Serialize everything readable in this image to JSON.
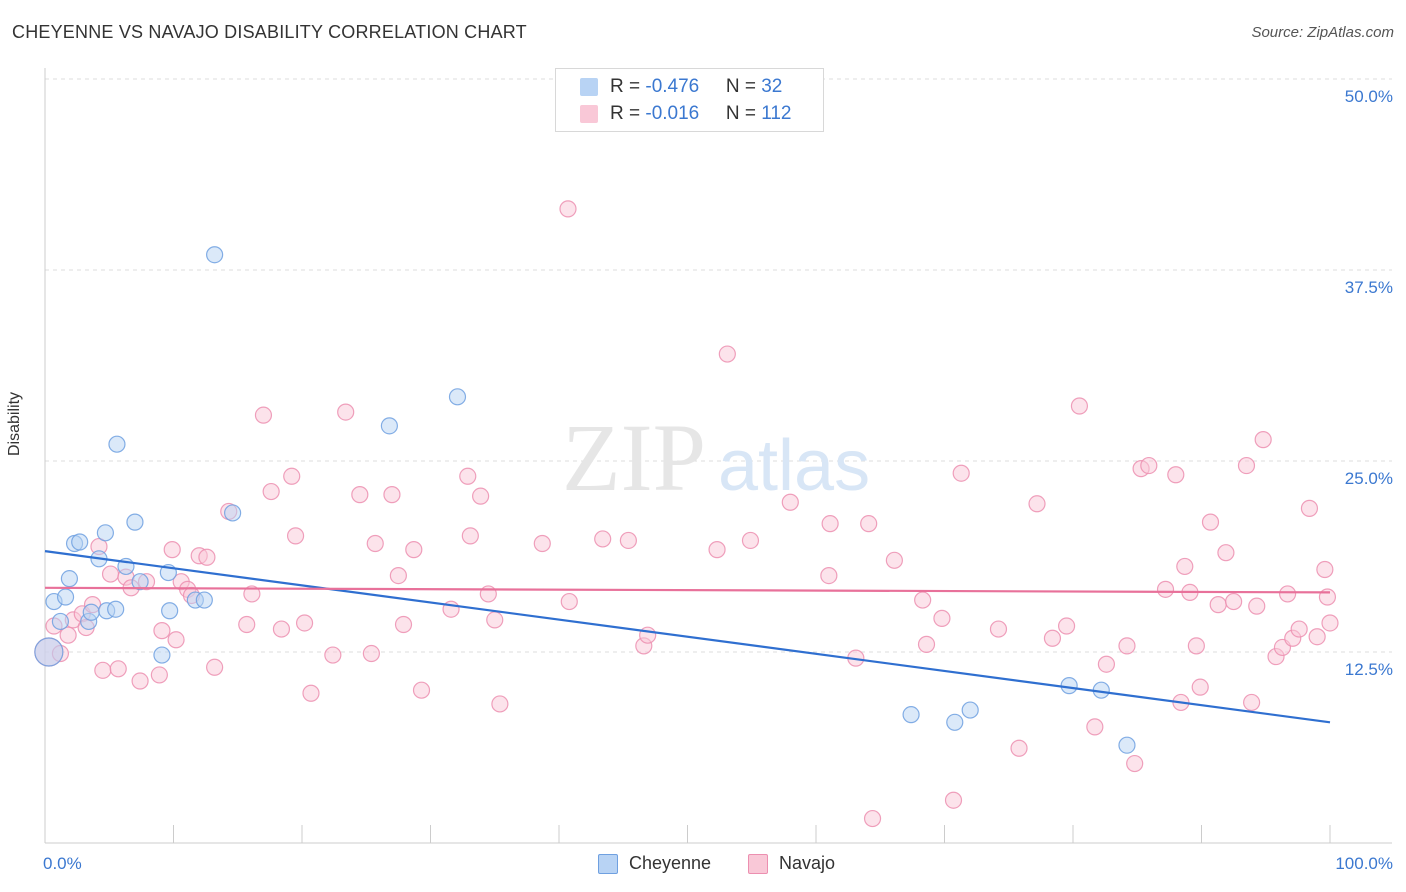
{
  "header": {
    "title": "CHEYENNE VS NAVAJO DISABILITY CORRELATION CHART",
    "source": "Source: ZipAtlas.com"
  },
  "watermark": {
    "zip": "ZIP",
    "atlas": "atlas"
  },
  "legend": {
    "rows": [
      {
        "r_label": "R = ",
        "r_value": "-0.476",
        "n_label": "N = ",
        "n_value": "32",
        "fill": "#b8d3f4",
        "stroke": "#6fa0e0"
      },
      {
        "r_label": "R = ",
        "r_value": "-0.016",
        "n_label": "N = ",
        "n_value": "112",
        "fill": "#f9c8d7",
        "stroke": "#ec8fb0"
      }
    ]
  },
  "chart_data": {
    "type": "scatter",
    "title": "CHEYENNE VS NAVAJO DISABILITY CORRELATION CHART",
    "ylabel": "Disability",
    "xlim": [
      0,
      100
    ],
    "ylim": [
      0,
      50
    ],
    "x_tick_labels": [
      "0.0%",
      "100.0%"
    ],
    "y_ticks": [
      12.5,
      25.0,
      37.5,
      50.0
    ],
    "y_tick_labels": [
      "12.5%",
      "25.0%",
      "37.5%",
      "50.0%"
    ],
    "grid": true,
    "legend_position": "top-center",
    "series": [
      {
        "name": "Cheyenne",
        "color": "#6fa0e0",
        "fill": "#b8d3f4",
        "line_color": "#2f6fd0",
        "trend": {
          "x": [
            0,
            100
          ],
          "y": [
            19.1,
            7.9
          ]
        },
        "points": [
          [
            0.3,
            12.5
          ],
          [
            0.7,
            15.8
          ],
          [
            1.2,
            14.5
          ],
          [
            1.6,
            16.1
          ],
          [
            1.9,
            17.3
          ],
          [
            2.3,
            19.6
          ],
          [
            2.7,
            19.7
          ],
          [
            3.4,
            14.5
          ],
          [
            3.6,
            15.1
          ],
          [
            4.2,
            18.6
          ],
          [
            4.7,
            20.3
          ],
          [
            4.8,
            15.2
          ],
          [
            5.5,
            15.3
          ],
          [
            5.6,
            26.1
          ],
          [
            6.3,
            18.1
          ],
          [
            7.0,
            21.0
          ],
          [
            7.4,
            17.1
          ],
          [
            9.1,
            12.3
          ],
          [
            9.6,
            17.7
          ],
          [
            9.7,
            15.2
          ],
          [
            11.7,
            15.9
          ],
          [
            12.4,
            15.9
          ],
          [
            13.2,
            38.5
          ],
          [
            14.6,
            21.6
          ],
          [
            26.8,
            27.3
          ],
          [
            32.1,
            29.2
          ],
          [
            67.4,
            8.4
          ],
          [
            70.8,
            7.9
          ],
          [
            72.0,
            8.7
          ],
          [
            79.7,
            10.3
          ],
          [
            82.2,
            10.0
          ],
          [
            84.2,
            6.4
          ]
        ]
      },
      {
        "name": "Navajo",
        "color": "#ec8fb0",
        "fill": "#f9c8d7",
        "line_color": "#e8719a",
        "trend": {
          "x": [
            0,
            100
          ],
          "y": [
            16.7,
            16.4
          ]
        },
        "points": [
          [
            0.3,
            12.5
          ],
          [
            0.7,
            14.2
          ],
          [
            1.2,
            12.4
          ],
          [
            1.8,
            13.6
          ],
          [
            2.2,
            14.6
          ],
          [
            2.9,
            15.0
          ],
          [
            3.2,
            14.1
          ],
          [
            3.7,
            15.6
          ],
          [
            4.2,
            19.4
          ],
          [
            4.5,
            11.3
          ],
          [
            5.1,
            17.6
          ],
          [
            5.7,
            11.4
          ],
          [
            6.3,
            17.4
          ],
          [
            6.7,
            16.7
          ],
          [
            7.4,
            10.6
          ],
          [
            7.9,
            17.1
          ],
          [
            8.9,
            11.0
          ],
          [
            9.1,
            13.9
          ],
          [
            9.9,
            19.2
          ],
          [
            10.2,
            13.3
          ],
          [
            10.6,
            17.1
          ],
          [
            11.1,
            16.6
          ],
          [
            11.4,
            16.2
          ],
          [
            12.0,
            18.8
          ],
          [
            12.6,
            18.7
          ],
          [
            13.2,
            11.5
          ],
          [
            14.3,
            21.7
          ],
          [
            15.7,
            14.3
          ],
          [
            16.1,
            16.3
          ],
          [
            17.0,
            28.0
          ],
          [
            17.6,
            23.0
          ],
          [
            18.4,
            14.0
          ],
          [
            19.2,
            24.0
          ],
          [
            19.5,
            20.1
          ],
          [
            20.2,
            14.4
          ],
          [
            20.7,
            9.8
          ],
          [
            22.4,
            12.3
          ],
          [
            23.4,
            28.2
          ],
          [
            24.5,
            22.8
          ],
          [
            25.4,
            12.4
          ],
          [
            25.7,
            19.6
          ],
          [
            27.0,
            22.8
          ],
          [
            27.5,
            17.5
          ],
          [
            27.9,
            14.3
          ],
          [
            28.7,
            19.2
          ],
          [
            29.3,
            10.0
          ],
          [
            31.6,
            15.3
          ],
          [
            32.9,
            24.0
          ],
          [
            33.1,
            20.1
          ],
          [
            33.9,
            22.7
          ],
          [
            34.5,
            16.3
          ],
          [
            35.0,
            14.6
          ],
          [
            35.4,
            9.1
          ],
          [
            38.7,
            19.6
          ],
          [
            40.7,
            41.5
          ],
          [
            40.8,
            15.8
          ],
          [
            43.4,
            19.9
          ],
          [
            45.4,
            19.8
          ],
          [
            46.6,
            12.9
          ],
          [
            46.9,
            13.6
          ],
          [
            52.3,
            19.2
          ],
          [
            53.1,
            32.0
          ],
          [
            54.9,
            19.8
          ],
          [
            58.0,
            22.3
          ],
          [
            61.0,
            17.5
          ],
          [
            61.1,
            20.9
          ],
          [
            63.1,
            12.1
          ],
          [
            64.1,
            20.9
          ],
          [
            66.1,
            18.5
          ],
          [
            68.3,
            15.9
          ],
          [
            68.6,
            13.0
          ],
          [
            69.8,
            14.7
          ],
          [
            70.7,
            2.8
          ],
          [
            71.3,
            24.2
          ],
          [
            74.2,
            14.0
          ],
          [
            75.8,
            6.2
          ],
          [
            77.2,
            22.2
          ],
          [
            78.4,
            13.4
          ],
          [
            79.5,
            14.2
          ],
          [
            80.5,
            28.6
          ],
          [
            81.7,
            7.6
          ],
          [
            82.6,
            11.7
          ],
          [
            84.2,
            12.9
          ],
          [
            84.8,
            5.2
          ],
          [
            85.3,
            24.5
          ],
          [
            85.9,
            24.7
          ],
          [
            87.2,
            16.6
          ],
          [
            88.0,
            24.1
          ],
          [
            88.4,
            9.2
          ],
          [
            88.7,
            18.1
          ],
          [
            89.1,
            16.4
          ],
          [
            89.6,
            12.9
          ],
          [
            89.9,
            10.2
          ],
          [
            90.7,
            21.0
          ],
          [
            91.3,
            15.6
          ],
          [
            91.9,
            19.0
          ],
          [
            92.5,
            15.8
          ],
          [
            93.5,
            24.7
          ],
          [
            93.9,
            9.2
          ],
          [
            94.3,
            15.5
          ],
          [
            94.8,
            26.4
          ],
          [
            95.8,
            12.2
          ],
          [
            96.3,
            12.8
          ],
          [
            96.7,
            16.3
          ],
          [
            97.1,
            13.4
          ],
          [
            97.6,
            14.0
          ],
          [
            98.4,
            21.9
          ],
          [
            99.0,
            13.5
          ],
          [
            99.6,
            17.9
          ],
          [
            99.8,
            16.1
          ],
          [
            100.0,
            14.4
          ],
          [
            64.4,
            1.6
          ]
        ]
      }
    ]
  }
}
